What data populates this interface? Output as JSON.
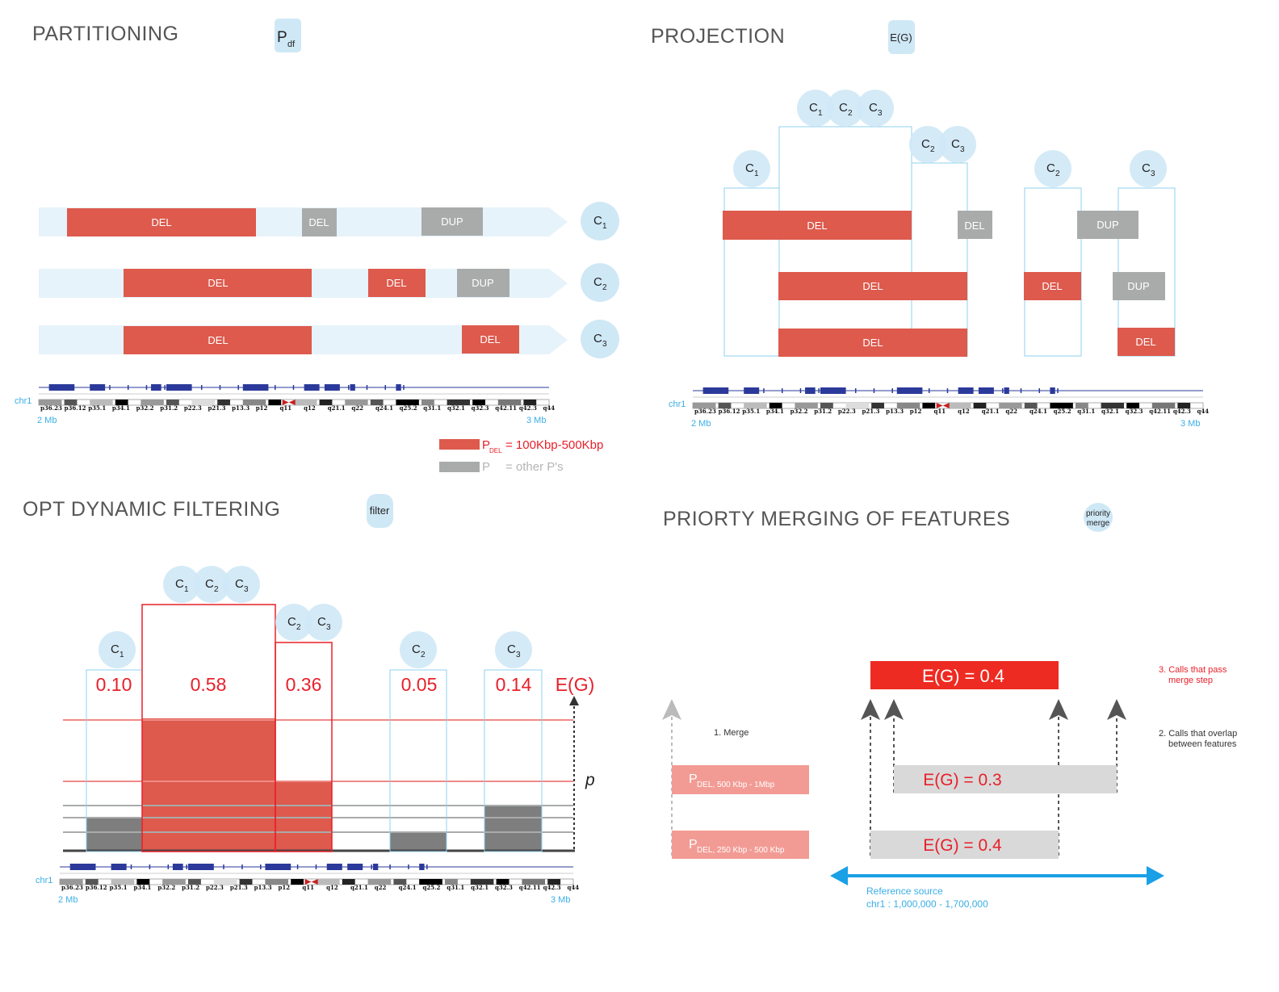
{
  "colors": {
    "del": "#dd5a4d",
    "dup": "#a9abab",
    "light_blue": "#cfe8f6",
    "arrow_band": "#e6f3fa",
    "outline": "#8fd0ef",
    "red": "#e8202a",
    "blue_arrow": "#1aa0e6"
  },
  "partitioning": {
    "title": "PARTITIONING",
    "badge": {
      "main": "P",
      "sub": "df"
    },
    "tracks": [
      {
        "cluster": "C",
        "sub": "1",
        "bars": [
          {
            "type": "DEL",
            "label": "DEL"
          },
          {
            "type": "DUP",
            "label": "DEL"
          },
          {
            "type": "DUP",
            "label": "DUP"
          }
        ]
      },
      {
        "cluster": "C",
        "sub": "2",
        "bars": [
          {
            "type": "DEL",
            "label": "DEL"
          },
          {
            "type": "DEL",
            "label": "DEL"
          },
          {
            "type": "DUP",
            "label": "DUP"
          }
        ]
      },
      {
        "cluster": "C",
        "sub": "3",
        "bars": [
          {
            "type": "DEL",
            "label": "DEL"
          },
          {
            "type": "DEL",
            "label": "DEL"
          }
        ]
      }
    ],
    "legend": [
      {
        "prefix": "P",
        "sub": "DEL",
        "text": "= 100Kbp-500Kbp",
        "color": "#e8202a"
      },
      {
        "prefix": "P",
        "sub": "",
        "text": "= other P's",
        "color": "#a9abab"
      }
    ]
  },
  "projection": {
    "title": "PROJECTION",
    "badge": "E(G)",
    "bars": [
      {
        "label": "DEL"
      },
      {
        "label": "DEL"
      },
      {
        "label": "DUP"
      },
      {
        "label": "DEL"
      },
      {
        "label": "DEL"
      },
      {
        "label": "DUP"
      },
      {
        "label": "DEL"
      },
      {
        "label": "DEL"
      }
    ]
  },
  "filtering": {
    "title": "OPT DYNAMIC FILTERING",
    "badge": "filter",
    "values": [
      "0.10",
      "0.58",
      "0.36",
      "0.05",
      "0.14"
    ],
    "eg_label": "E(G)",
    "p_label": "p"
  },
  "merging": {
    "title": "PRIORTY MERGING OF FEATURES",
    "badge": [
      "priority",
      "merge"
    ],
    "top_box": "E(G) = 0.4",
    "mid_box": "E(G) = 0.3",
    "bot_box": "E(G) = 0.4",
    "step1": "1. Merge",
    "step2": [
      "2. Calls that overlap",
      "between features"
    ],
    "step3": [
      "3. Calls that pass",
      "merge step"
    ],
    "p_top": {
      "main": "P",
      "sub": "DEL, 500 Kbp - 1Mbp"
    },
    "p_bot": {
      "main": "P",
      "sub": "DEL, 250 Kbp - 500 Kbp"
    },
    "ref_source": "Reference source",
    "ref_range": "chr1 : 1,000,000 - 1,700,000"
  },
  "ideogram": {
    "chrom": "chr1",
    "left": "2 Mb",
    "right": "3 Mb",
    "bands": [
      "p36.23",
      "p36.12",
      "p35.1",
      "p34.1",
      "p32.2",
      "p31.2",
      "p22.3",
      "p21.3",
      "p13.3",
      "p12",
      "q11",
      "q12",
      "q21.1",
      "q22",
      "q24.1",
      "q25.2",
      "q31.1",
      "q32.1",
      "q32.3",
      "q42.11",
      "q42.3",
      "q44"
    ]
  },
  "cluster_labels": {
    "c": "C",
    "s1": "1",
    "s2": "2",
    "s3": "3"
  }
}
